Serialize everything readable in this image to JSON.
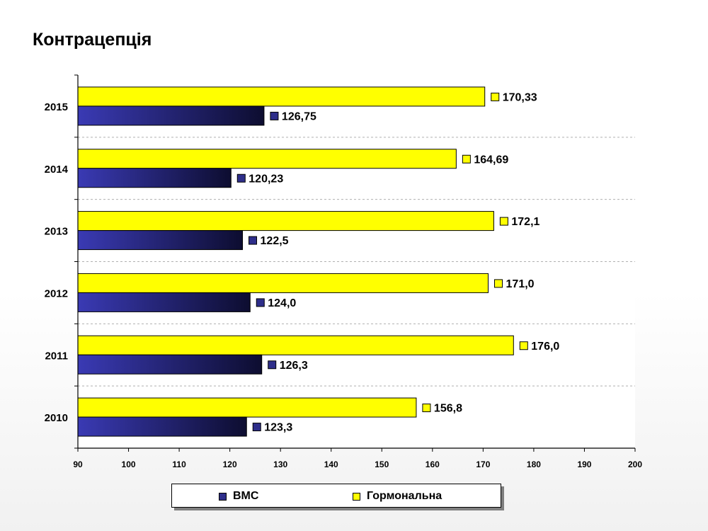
{
  "title": "Контрацепція",
  "chart_data": {
    "type": "bar",
    "orientation": "horizontal",
    "categories": [
      "2015",
      "2014",
      "2013",
      "2012",
      "2011",
      "2010"
    ],
    "series": [
      {
        "name": "Гормональна",
        "color": "#ffff00",
        "values": [
          170.33,
          164.69,
          172.1,
          171.0,
          176.0,
          156.8
        ],
        "labels": [
          "170,33",
          "164,69",
          "172,1",
          "171,0",
          "176,0",
          "156,8"
        ]
      },
      {
        "name": "ВМС",
        "color": "#2e2e8a",
        "values": [
          126.75,
          120.23,
          122.5,
          124.0,
          126.3,
          123.3
        ],
        "labels": [
          "126,75",
          "120,23",
          "122,5",
          "124,0",
          "126,3",
          "123,3"
        ]
      }
    ],
    "xlim": [
      90,
      200
    ],
    "xticks": [
      90,
      100,
      110,
      120,
      130,
      140,
      150,
      160,
      170,
      180,
      190,
      200
    ],
    "grid": "horizontal dashed between categories",
    "legend_position": "bottom"
  },
  "legend": {
    "items": [
      {
        "label": "ВМС",
        "color": "#2e2e8a"
      },
      {
        "label": "Гормональна",
        "color": "#ffff00"
      }
    ]
  }
}
